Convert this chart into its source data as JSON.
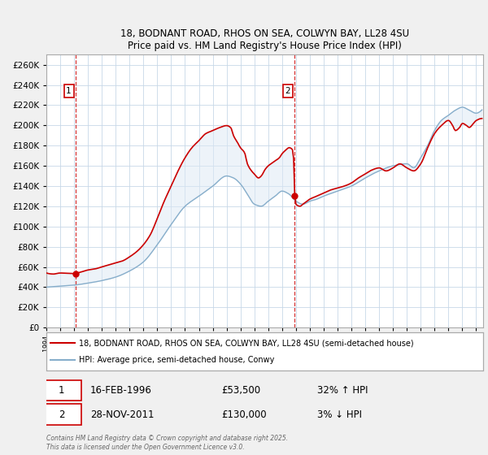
{
  "title1": "18, BODNANT ROAD, RHOS ON SEA, COLWYN BAY, LL28 4SU",
  "title2": "Price paid vs. HM Land Registry's House Price Index (HPI)",
  "legend_line1": "18, BODNANT ROAD, RHOS ON SEA, COLWYN BAY, LL28 4SU (semi-detached house)",
  "legend_line2": "HPI: Average price, semi-detached house, Conwy",
  "annotation1_label": "1",
  "annotation1_date": "16-FEB-1996",
  "annotation1_price": "£53,500",
  "annotation1_hpi": "32% ↑ HPI",
  "annotation2_label": "2",
  "annotation2_date": "28-NOV-2011",
  "annotation2_price": "£130,000",
  "annotation2_hpi": "3% ↓ HPI",
  "footer": "Contains HM Land Registry data © Crown copyright and database right 2025.\nThis data is licensed under the Open Government Licence v3.0.",
  "vline1_x": 1996.12,
  "vline2_x": 2011.92,
  "sale1_x": 1996.12,
  "sale1_y": 53500,
  "sale2_x": 2011.92,
  "sale2_y": 130000,
  "red_color": "#cc0000",
  "blue_color": "#87AECB",
  "fill_color": "#dce8f5",
  "background_color": "#f0f0f0",
  "plot_bg_color": "#ffffff",
  "ylim": [
    0,
    270000
  ],
  "xlim_start": 1994.0,
  "xlim_end": 2025.5
}
